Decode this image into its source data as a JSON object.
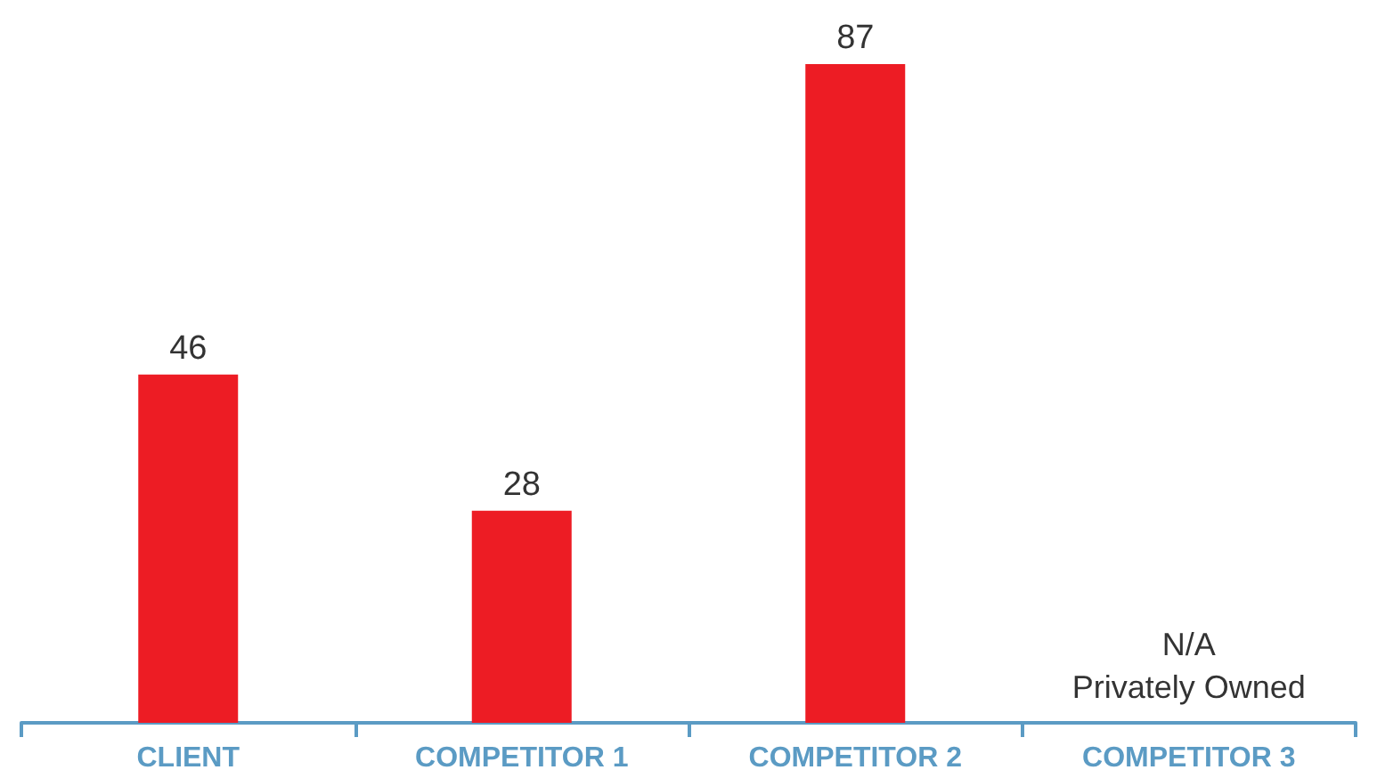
{
  "chart_data": {
    "type": "bar",
    "categories": [
      "CLIENT",
      "COMPETITOR 1",
      "COMPETITOR 2",
      "COMPETITOR 3"
    ],
    "values": [
      46,
      28,
      87,
      null
    ],
    "color": "#ed1c24",
    "data_labels": true,
    "annotations": [
      "N/A\nPrivately Owned"
    ]
  }
}
